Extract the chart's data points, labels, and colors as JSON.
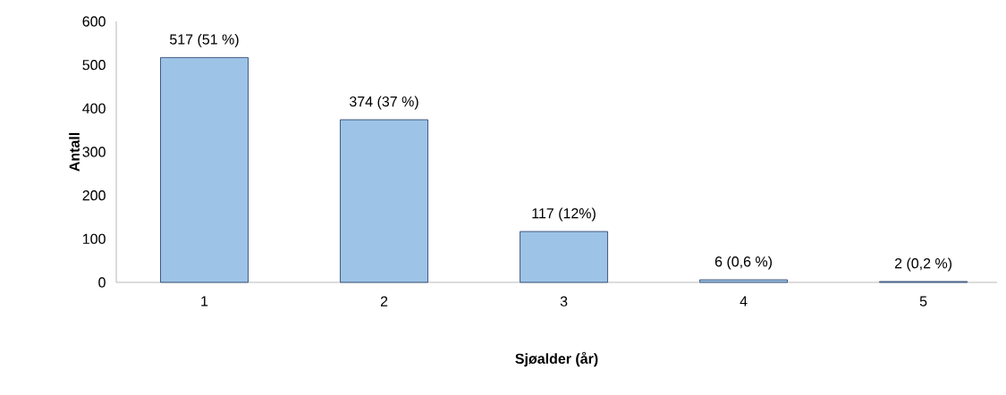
{
  "chart_data": {
    "type": "bar",
    "xlabel": "Sjøalder (år)",
    "ylabel": "Antall",
    "categories": [
      "1",
      "2",
      "3",
      "4",
      "5"
    ],
    "values": [
      517,
      374,
      117,
      6,
      2
    ],
    "value_labels": [
      "517 (51 %)",
      "374 (37 %)",
      "117 (12%)",
      "6 (0,6 %)",
      "2 (0,2 %)"
    ],
    "color": "#9dc3e6",
    "ylim": [
      0,
      600
    ],
    "yticks": [
      0,
      100,
      200,
      300,
      400,
      500,
      600
    ],
    "grid": false
  }
}
